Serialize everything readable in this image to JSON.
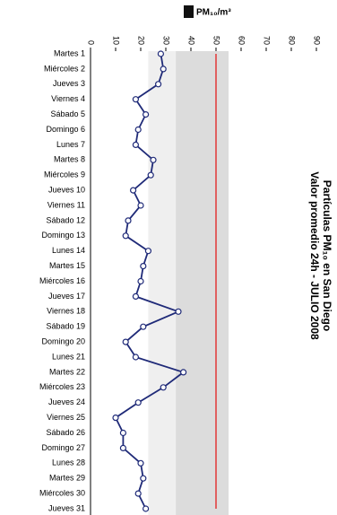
{
  "chart_data": {
    "type": "line",
    "orientation": "horizontal",
    "title": "Partículas PM₁₀ en San Diego",
    "subtitle": "Valor promedio 24h - JULIO 2008",
    "x_label": "PM₁₀/m³",
    "categories": [
      "Martes 1",
      "Miércoles 2",
      "Jueves 3",
      "Viernes 4",
      "Sábado 5",
      "Domingo 6",
      "Lunes 7",
      "Martes 8",
      "Miércoles 9",
      "Jueves 10",
      "Viernes 11",
      "Sábado 12",
      "Domingo 13",
      "Lunes 14",
      "Martes 15",
      "Miércoles 16",
      "Jueves 17",
      "Viernes 18",
      "Sábado 19",
      "Domingo 20",
      "Lunes 21",
      "Martes 22",
      "Miércoles 23",
      "Jueves 24",
      "Viernes 25",
      "Sábado 26",
      "Domingo 27",
      "Lunes 28",
      "Martes 29",
      "Miércoles 30",
      "Jueves 31"
    ],
    "values": [
      28,
      29,
      27,
      18,
      22,
      19,
      18,
      25,
      24,
      17,
      20,
      15,
      14,
      23,
      21,
      20,
      18,
      35,
      21,
      14,
      18,
      37,
      29,
      19,
      10,
      13,
      13,
      20,
      21,
      19,
      22
    ],
    "color": "#1f2a78",
    "xlim": [
      0,
      90
    ],
    "xticks": [
      0,
      10,
      20,
      30,
      40,
      50,
      60,
      70,
      80,
      90
    ],
    "bands": [
      {
        "from": 23,
        "to": 55,
        "color": "#efefef"
      },
      {
        "from": 34,
        "to": 55,
        "color": "#dcdcdc"
      }
    ],
    "limit": 50,
    "limit_color": "#e06060"
  }
}
